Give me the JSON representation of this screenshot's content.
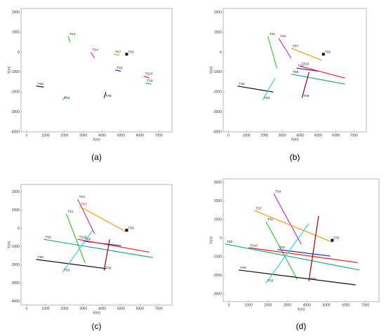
{
  "chart_data": [
    {
      "type": "line",
      "caption": "(a)",
      "xlabel": "X(m)",
      "ylabel": "Y(m)",
      "xlim": [
        -300,
        7700
      ],
      "ylim": [
        -4000,
        2200
      ],
      "xticks": [
        0,
        1000,
        2000,
        3000,
        4000,
        5000,
        6000,
        7000
      ],
      "yticks": [
        -4000,
        -3000,
        -2000,
        -1000,
        0,
        1000,
        2000
      ],
      "series": [
        {
          "name": "TS1",
          "color": "#33cc33",
          "x": [
            2200,
            2300
          ],
          "values": [
            800,
            500
          ]
        },
        {
          "name": "TS4",
          "color": "#cc33cc",
          "x": [
            3400,
            3600
          ],
          "values": [
            0,
            -300
          ]
        },
        {
          "name": "TS7",
          "color": "#ff9900",
          "x": [
            4600,
            4900
          ],
          "values": [
            -100,
            -150
          ]
        },
        {
          "name": "TS5",
          "color": "#111111",
          "x": [
            5300
          ],
          "values": [
            -100
          ]
        },
        {
          "name": "TS2",
          "color": "#2222cc",
          "x": [
            4700,
            5000
          ],
          "values": [
            -900,
            -950
          ]
        },
        {
          "name": "TS10",
          "color": "#ee2222",
          "x": [
            6200,
            6500
          ],
          "values": [
            -1200,
            -1300
          ]
        },
        {
          "name": "TS9",
          "color": "#22aa88",
          "x": [
            6300,
            6600
          ],
          "values": [
            -1550,
            -1600
          ]
        },
        {
          "name": "TS6",
          "color": "#111111",
          "x": [
            500,
            900
          ],
          "values": [
            -1700,
            -1750
          ]
        },
        {
          "name": "TS3",
          "color": "#33ccff",
          "x": [
            1900,
            2100
          ],
          "values": [
            -2400,
            -2200
          ]
        },
        {
          "name": "TS8",
          "color": "#990000",
          "x": [
            4100,
            4200
          ],
          "values": [
            -2300,
            -2000
          ]
        }
      ]
    },
    {
      "type": "line",
      "caption": "(b)",
      "xlabel": "X(m)",
      "ylabel": "Y(m)",
      "xlim": [
        -300,
        7700
      ],
      "ylim": [
        -4000,
        2200
      ],
      "xticks": [
        0,
        1000,
        2000,
        3000,
        4000,
        5000,
        6000,
        7000
      ],
      "yticks": [
        -4000,
        -3000,
        -2000,
        -1000,
        0,
        1000,
        2000
      ],
      "series": [
        {
          "name": "TS1",
          "color": "#33cc33",
          "x": [
            2200,
            2700
          ],
          "values": [
            800,
            -800
          ]
        },
        {
          "name": "TS4",
          "color": "#cc33cc",
          "x": [
            2800,
            3500
          ],
          "values": [
            700,
            -300
          ]
        },
        {
          "name": "TS7",
          "color": "#ff9900",
          "x": [
            3500,
            5200
          ],
          "values": [
            200,
            -400
          ]
        },
        {
          "name": "TS5",
          "color": "#111111",
          "x": [
            5300
          ],
          "values": [
            -100
          ]
        },
        {
          "name": "TS2",
          "color": "#2222cc",
          "x": [
            3800,
            5000
          ],
          "values": [
            -800,
            -950
          ]
        },
        {
          "name": "TS10",
          "color": "#ee2222",
          "x": [
            4000,
            6500
          ],
          "values": [
            -700,
            -1300
          ]
        },
        {
          "name": "TS9",
          "color": "#22aa88",
          "x": [
            3500,
            6500
          ],
          "values": [
            -1100,
            -1600
          ]
        },
        {
          "name": "TS6",
          "color": "#111111",
          "x": [
            500,
            2500
          ],
          "values": [
            -1700,
            -2000
          ]
        },
        {
          "name": "TS3",
          "color": "#33ccff",
          "x": [
            1900,
            2600
          ],
          "values": [
            -2400,
            -1300
          ]
        },
        {
          "name": "TS8",
          "color": "#990000",
          "x": [
            4100,
            4500
          ],
          "values": [
            -2300,
            -1000
          ]
        }
      ]
    },
    {
      "type": "line",
      "caption": "(c)",
      "xlabel": "X(m)",
      "ylabel": "Y(m)",
      "xlim": [
        -300,
        7700
      ],
      "ylim": [
        -4200,
        2400
      ],
      "xticks": [
        0,
        1000,
        2000,
        3000,
        4000,
        5000,
        6000,
        7000
      ],
      "yticks": [
        -4000,
        -3000,
        -2000,
        -1000,
        0,
        1000,
        2000
      ],
      "series": [
        {
          "name": "TS1",
          "color": "#33cc33",
          "x": [
            2100,
            3100
          ],
          "values": [
            800,
            -1900
          ]
        },
        {
          "name": "TS4",
          "color": "#cc33cc",
          "x": [
            2700,
            3600
          ],
          "values": [
            1600,
            -300
          ]
        },
        {
          "name": "TS7",
          "color": "#ff9900",
          "x": [
            2800,
            5300
          ],
          "values": [
            1200,
            -200
          ]
        },
        {
          "name": "TS5",
          "color": "#111111",
          "x": [
            5300
          ],
          "values": [
            -100
          ]
        },
        {
          "name": "TS2",
          "color": "#2222cc",
          "x": [
            3000,
            5000
          ],
          "values": [
            -700,
            -950
          ]
        },
        {
          "name": "TS10",
          "color": "#ee2222",
          "x": [
            2700,
            6500
          ],
          "values": [
            -600,
            -1300
          ]
        },
        {
          "name": "TS9",
          "color": "#22aa88",
          "x": [
            900,
            6700
          ],
          "values": [
            -600,
            -1600
          ]
        },
        {
          "name": "TS6",
          "color": "#111111",
          "x": [
            500,
            4200
          ],
          "values": [
            -1700,
            -2200
          ]
        },
        {
          "name": "TS3",
          "color": "#33ccff",
          "x": [
            1900,
            3500
          ],
          "values": [
            -2400,
            -100
          ]
        },
        {
          "name": "TS8",
          "color": "#990000",
          "x": [
            4100,
            4400
          ],
          "values": [
            -2300,
            -600
          ]
        }
      ]
    },
    {
      "type": "line",
      "caption": "(d)",
      "xlabel": "X(m)",
      "ylabel": "Y(m)",
      "xlim": [
        -300,
        7700
      ],
      "ylim": [
        -3400,
        3200
      ],
      "xticks": [
        0,
        1000,
        2000,
        3000,
        4000,
        5000,
        6000,
        7000
      ],
      "yticks": [
        -3000,
        -2000,
        -1000,
        0,
        1000,
        2000,
        3000
      ],
      "series": [
        {
          "name": "TS1",
          "color": "#33cc33",
          "x": [
            1900,
            3500
          ],
          "values": [
            900,
            -2200
          ]
        },
        {
          "name": "TS4",
          "color": "#cc33cc",
          "x": [
            2300,
            3700
          ],
          "values": [
            2400,
            -300
          ]
        },
        {
          "name": "TS7",
          "color": "#ff9900",
          "x": [
            1300,
            5300
          ],
          "values": [
            1500,
            -200
          ]
        },
        {
          "name": "TS5",
          "color": "#111111",
          "x": [
            5300
          ],
          "values": [
            -100
          ]
        },
        {
          "name": "TS2",
          "color": "#2222cc",
          "x": [
            2500,
            5200
          ],
          "values": [
            -600,
            -950
          ]
        },
        {
          "name": "TS10",
          "color": "#ee2222",
          "x": [
            1000,
            6600
          ],
          "values": [
            -500,
            -1300
          ]
        },
        {
          "name": "TS9",
          "color": "#22aa88",
          "x": [
            -200,
            6700
          ],
          "values": [
            -300,
            -1700
          ]
        },
        {
          "name": "TS6",
          "color": "#111111",
          "x": [
            500,
            6500
          ],
          "values": [
            -1700,
            -2500
          ]
        },
        {
          "name": "TS3",
          "color": "#33ccff",
          "x": [
            1900,
            4100
          ],
          "values": [
            -2400,
            800
          ]
        },
        {
          "name": "TS8",
          "color": "#990000",
          "x": [
            4100,
            4600
          ],
          "values": [
            -2300,
            1200
          ]
        }
      ]
    }
  ]
}
